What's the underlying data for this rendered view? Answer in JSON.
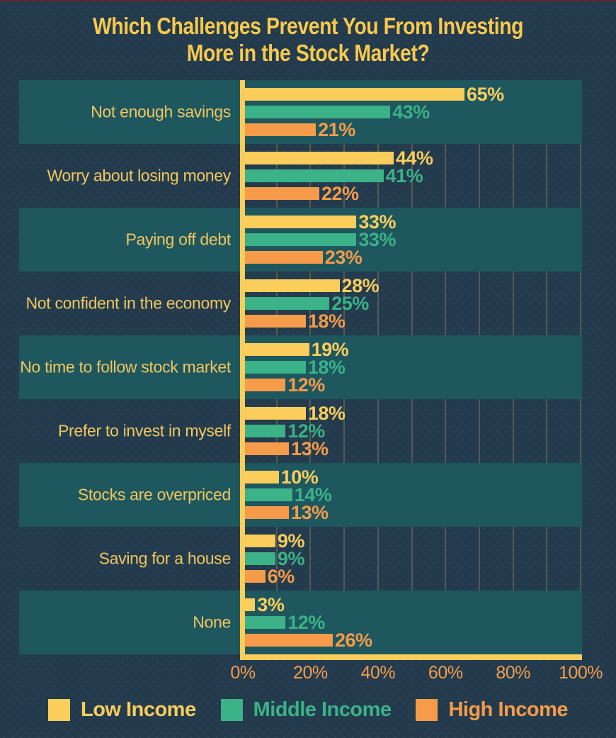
{
  "page": {
    "background_color": "#233b4d",
    "band_color": "#1f575f",
    "top_border_color": "#5c2a33",
    "axis_color": "#fbcd5b",
    "grid_color": "rgba(246,205,95,0.22)",
    "title_color": "#f8c94e",
    "category_label_color": "#f0c75e",
    "tick_label_color": "#f49d4d"
  },
  "chart_data": {
    "type": "bar",
    "orientation": "horizontal",
    "title": "Which Challenges Prevent You From Investing More in the Stock Market?",
    "title_lines": [
      "Which Challenges Prevent You From Investing",
      "More in the Stock Market?"
    ],
    "categories": [
      "Not enough savings",
      "Worry about losing money",
      "Paying off debt",
      "Not confident in the economy",
      "No time to follow stock market",
      "Prefer to invest in myself",
      "Stocks are overpriced",
      "Saving for a house",
      "None"
    ],
    "series": [
      {
        "name": "Low Income",
        "color": "#fbcd5b",
        "values": [
          65,
          44,
          33,
          28,
          19,
          18,
          10,
          9,
          3
        ]
      },
      {
        "name": "Middle Income",
        "color": "#3bb287",
        "values": [
          43,
          41,
          33,
          25,
          18,
          12,
          14,
          9,
          12
        ]
      },
      {
        "name": "High Income",
        "color": "#f59b49",
        "values": [
          21,
          22,
          23,
          18,
          12,
          13,
          13,
          6,
          26
        ]
      }
    ],
    "value_suffix": "%",
    "xlabel": "",
    "ylabel": "",
    "xlim": [
      0,
      100
    ],
    "x_ticks": [
      "0%",
      "20%",
      "40%",
      "60%",
      "80%",
      "100%"
    ],
    "x_tick_values": [
      0,
      20,
      40,
      60,
      80,
      100
    ],
    "grid": "vertical gridlines every 10%",
    "banded_rows": "alternating, starting with first category",
    "legend_position": "bottom",
    "value_labels": "at bar end, colored same as bar"
  }
}
